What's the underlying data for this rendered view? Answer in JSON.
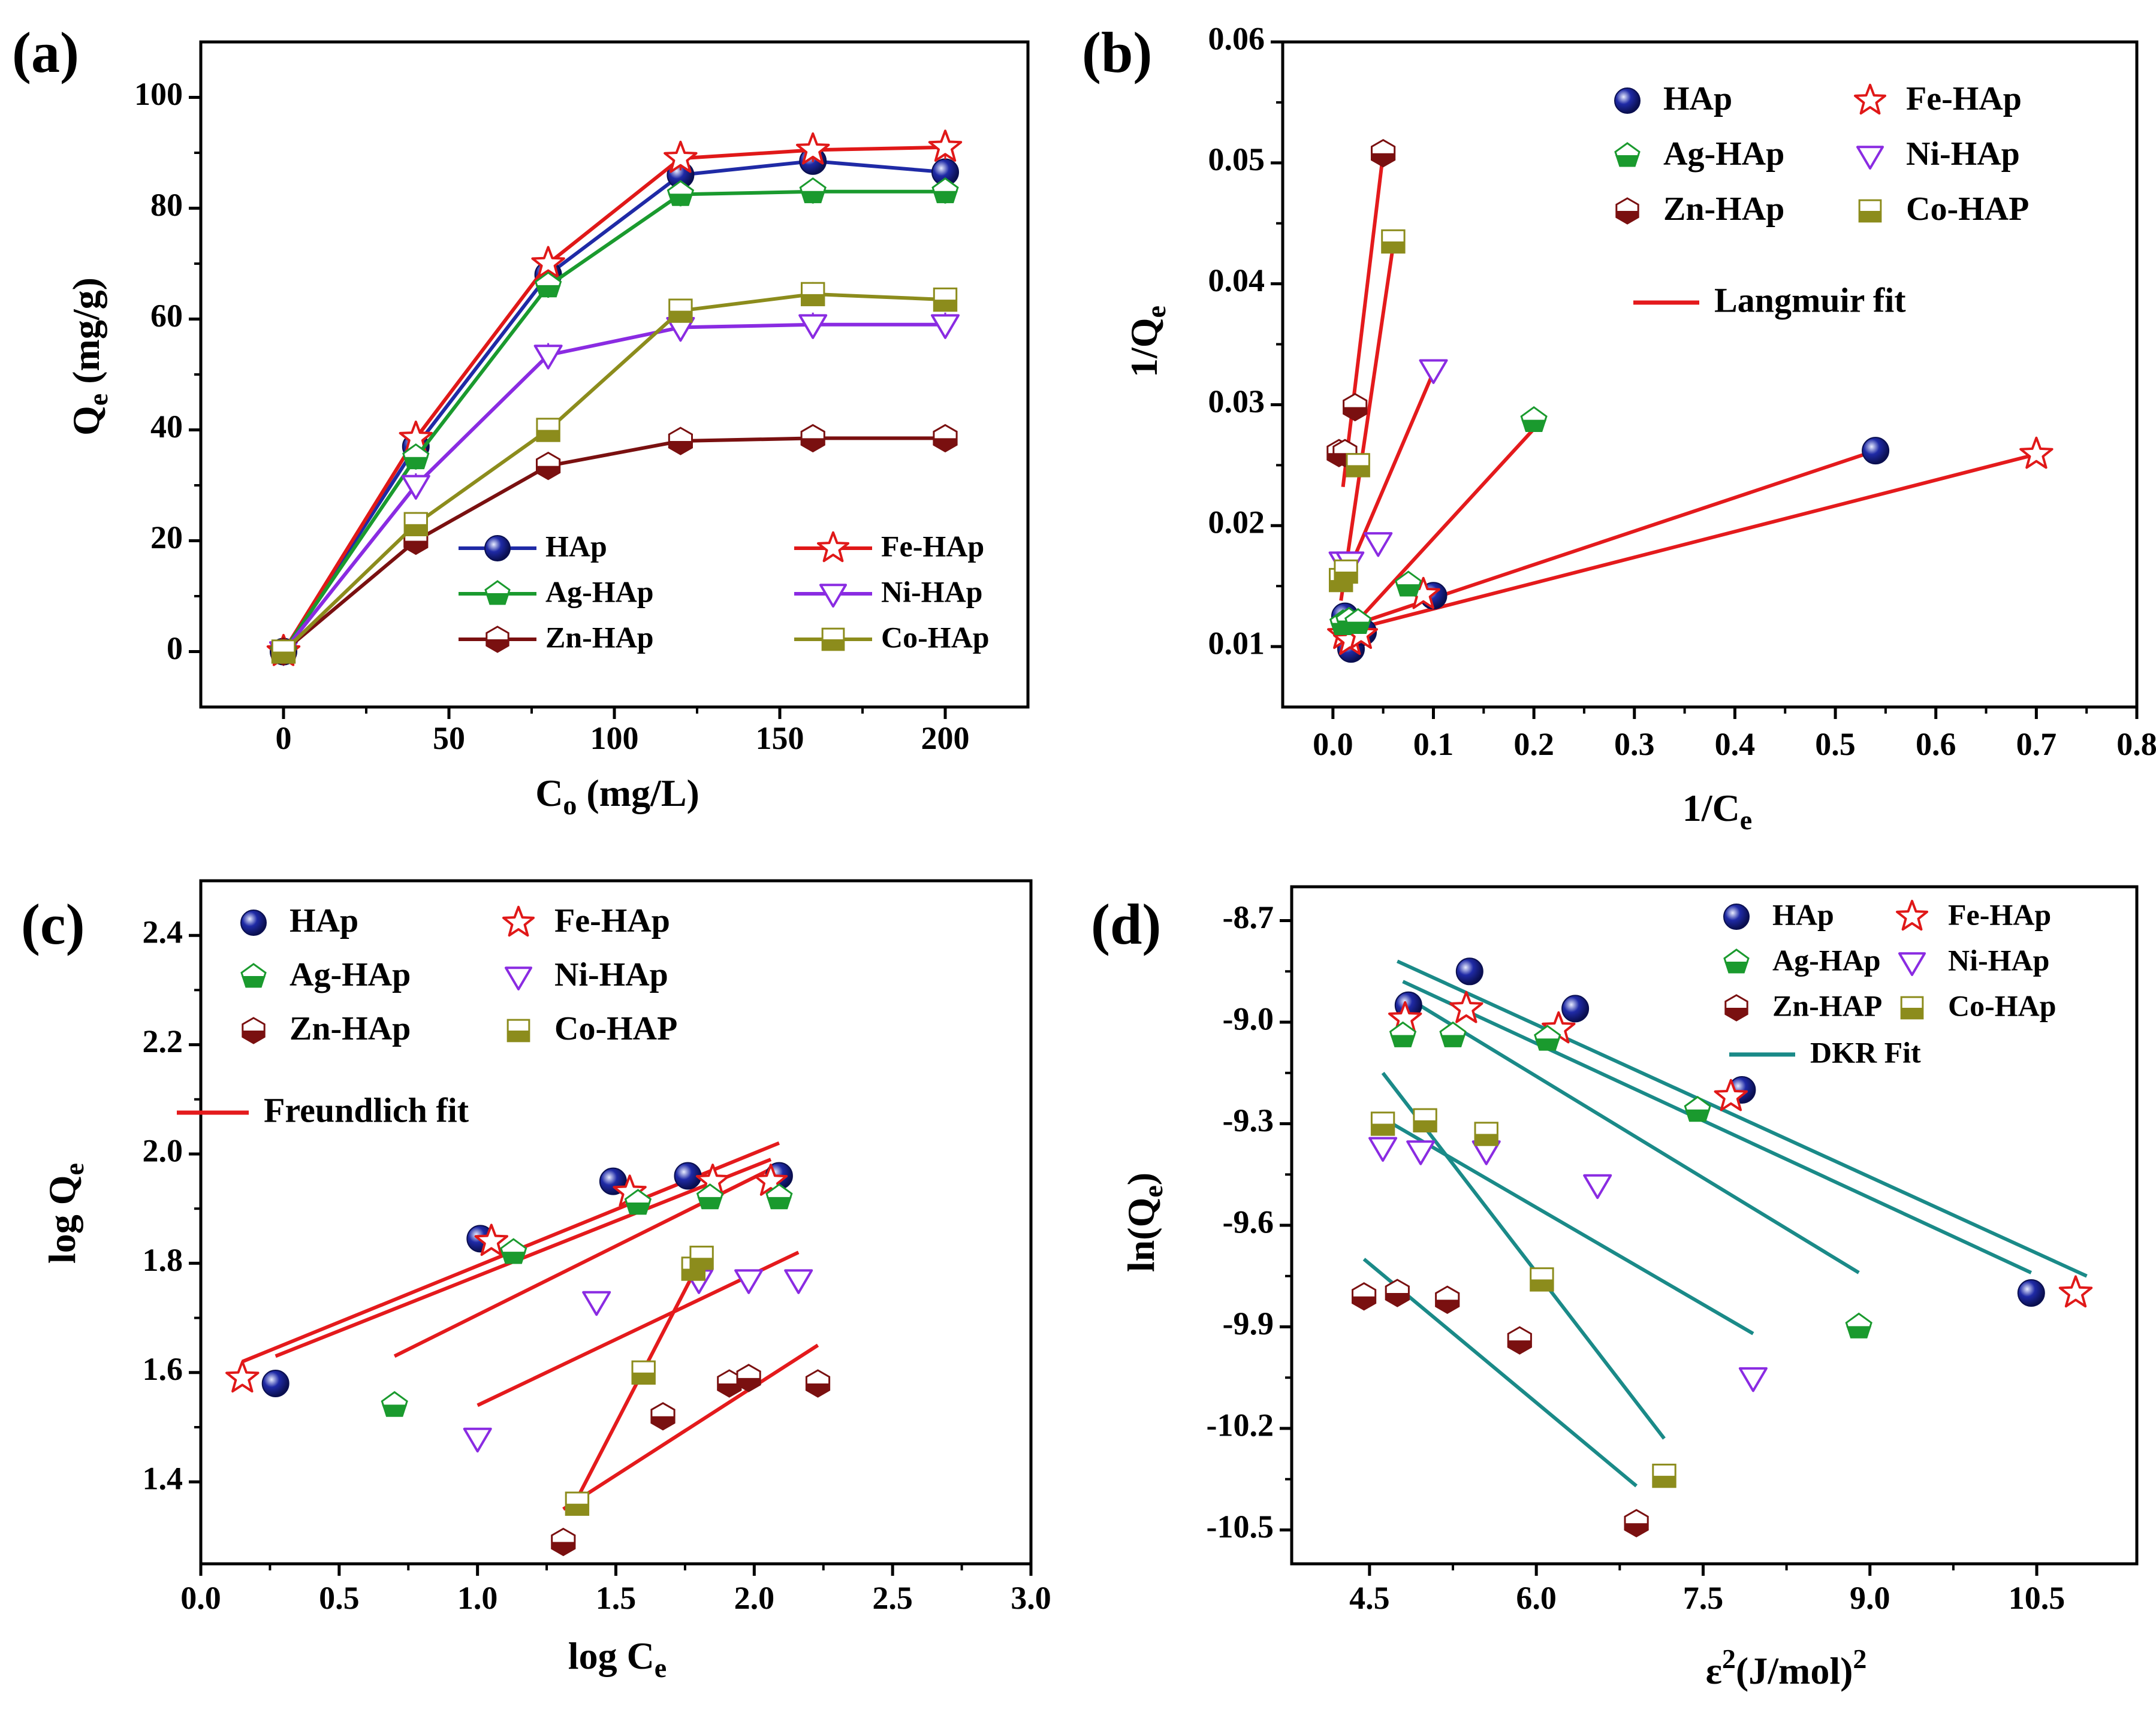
{
  "colors": {
    "HAp": "#1f2aa6",
    "Ag": "#1a9a2e",
    "Zn": "#7a1010",
    "Fe": "#e01818",
    "Ni": "#8a2be2",
    "Co": "#8c8c1c",
    "fit_red": "#e41a1c",
    "fit_teal": "#1a8a88"
  },
  "chart_data": [
    {
      "panel": "(a)",
      "type": "line",
      "xlabel_main": "C",
      "xlabel_sub": "o",
      "xlabel_unit": " (mg/L)",
      "ylabel_main": "Q",
      "ylabel_sub": "e",
      "ylabel_unit": " (mg/g)",
      "xlim": [
        -25,
        225
      ],
      "ylim": [
        -10,
        110
      ],
      "xticks": [
        0,
        50,
        100,
        150,
        200
      ],
      "xtick_labels": [
        "0",
        "50",
        "100",
        "150",
        "200"
      ],
      "yticks": [
        0,
        20,
        40,
        60,
        80,
        100
      ],
      "ytick_labels": [
        "0",
        "20",
        "40",
        "60",
        "80",
        "100"
      ],
      "x": [
        0,
        40,
        80,
        120,
        160,
        200
      ],
      "series": [
        {
          "name": "HAp",
          "key": "HAp",
          "marker": "circle",
          "values": [
            0,
            37,
            68,
            86,
            88.5,
            86.5
          ]
        },
        {
          "name": "Fe-HAp",
          "key": "Fe",
          "marker": "star",
          "values": [
            0,
            38.5,
            70,
            89,
            90.5,
            91
          ]
        },
        {
          "name": "Ag-HAp",
          "key": "Ag",
          "marker": "pentagon",
          "values": [
            0,
            35,
            66,
            82.5,
            83,
            83
          ]
        },
        {
          "name": "Ni-HAp",
          "key": "Ni",
          "marker": "triangle",
          "values": [
            0,
            30,
            53.5,
            58.5,
            59,
            59
          ]
        },
        {
          "name": "Zn-HAp",
          "key": "Zn",
          "marker": "hexagon",
          "values": [
            0,
            20,
            33.5,
            38,
            38.5,
            38.5
          ]
        },
        {
          "name": "Co-HAp",
          "key": "Co",
          "marker": "square",
          "values": [
            0,
            23,
            40,
            61.5,
            64.5,
            63.5
          ]
        }
      ],
      "legend": [
        "HAp",
        "Fe-HAp",
        "Ag-HAp",
        "Ni-HAp",
        "Zn-HAp",
        "Co-HAp"
      ]
    },
    {
      "panel": "(b)",
      "type": "scatter",
      "xlabel_main": "1/C",
      "xlabel_sub": "e",
      "xlabel_unit": "",
      "ylabel_main": "1/Q",
      "ylabel_sub": "e",
      "ylabel_unit": "",
      "xlim": [
        -0.05,
        0.8
      ],
      "ylim": [
        0.005,
        0.06
      ],
      "xticks": [
        0,
        0.1,
        0.2,
        0.3,
        0.4,
        0.5,
        0.6,
        0.7,
        0.8
      ],
      "xtick_labels": [
        "0.0",
        "0.1",
        "0.2",
        "0.3",
        "0.4",
        "0.5",
        "0.6",
        "0.7",
        "0.8"
      ],
      "yticks": [
        0.01,
        0.02,
        0.03,
        0.04,
        0.05,
        0.06
      ],
      "ytick_labels": [
        "0.01",
        "0.02",
        "0.03",
        "0.04",
        "0.05",
        "0.06"
      ],
      "series": [
        {
          "name": "HAp",
          "key": "HAp",
          "marker": "circle",
          "x": [
            0.012,
            0.018,
            0.03,
            0.1,
            0.54
          ],
          "y": [
            0.0125,
            0.0098,
            0.0112,
            0.0142,
            0.0262
          ]
        },
        {
          "name": "Fe-HAp",
          "key": "Fe",
          "marker": "star",
          "x": [
            0.011,
            0.017,
            0.028,
            0.09,
            0.7
          ],
          "y": [
            0.011,
            0.0105,
            0.011,
            0.0143,
            0.0259
          ]
        },
        {
          "name": "Ag-HAp",
          "key": "Ag",
          "marker": "pentagon",
          "x": [
            0.01,
            0.016,
            0.025,
            0.075,
            0.2
          ],
          "y": [
            0.0119,
            0.0121,
            0.012,
            0.0151,
            0.0287
          ]
        },
        {
          "name": "Ni-HAp",
          "key": "Ni",
          "marker": "triangle",
          "x": [
            0.01,
            0.017,
            0.045,
            0.1
          ],
          "y": [
            0.017,
            0.017,
            0.0186,
            0.0329
          ]
        },
        {
          "name": "Zn-HAp",
          "key": "Zn",
          "marker": "hexagon",
          "x": [
            0.006,
            0.012,
            0.022,
            0.05
          ],
          "y": [
            0.026,
            0.026,
            0.0298,
            0.0508
          ]
        },
        {
          "name": "Co-HAP",
          "key": "Co",
          "marker": "square",
          "x": [
            0.008,
            0.013,
            0.025,
            0.06
          ],
          "y": [
            0.0155,
            0.0162,
            0.025,
            0.0435
          ]
        }
      ],
      "fits": [
        {
          "x1": 0.01,
          "y1": 0.0115,
          "x2": 0.54,
          "y2": 0.0262
        },
        {
          "x1": 0.01,
          "y1": 0.0112,
          "x2": 0.7,
          "y2": 0.0259
        },
        {
          "x1": 0.01,
          "y1": 0.0108,
          "x2": 0.2,
          "y2": 0.028
        },
        {
          "x1": 0.008,
          "y1": 0.0148,
          "x2": 0.1,
          "y2": 0.0327
        },
        {
          "x1": 0.01,
          "y1": 0.0232,
          "x2": 0.05,
          "y2": 0.0508
        },
        {
          "x1": 0.008,
          "y1": 0.0138,
          "x2": 0.06,
          "y2": 0.0432
        }
      ],
      "legend": [
        "HAp",
        "Fe-HAp",
        "Ag-HAp",
        "Ni-HAp",
        "Zn-HAp",
        "Co-HAP"
      ],
      "fit_label": "Langmuir fit"
    },
    {
      "panel": "(c)",
      "type": "scatter",
      "xlabel_main": "log C",
      "xlabel_sub": "e",
      "xlabel_unit": "",
      "ylabel_main": "log Q",
      "ylabel_sub": "e",
      "ylabel_unit": "",
      "xlim": [
        0,
        3
      ],
      "ylim": [
        1.25,
        2.5
      ],
      "xticks": [
        0,
        0.5,
        1,
        1.5,
        2,
        2.5,
        3
      ],
      "xtick_labels": [
        "0.0",
        "0.5",
        "1.0",
        "1.5",
        "2.0",
        "2.5",
        "3.0"
      ],
      "yticks": [
        1.4,
        1.6,
        1.8,
        2.0,
        2.2,
        2.4
      ],
      "ytick_labels": [
        "1.4",
        "1.6",
        "1.8",
        "2.0",
        "2.2",
        "2.4"
      ],
      "series": [
        {
          "name": "HAp",
          "key": "HAp",
          "marker": "circle",
          "x": [
            0.27,
            1.01,
            1.49,
            1.76,
            2.09
          ],
          "y": [
            1.58,
            1.845,
            1.95,
            1.96,
            1.96
          ]
        },
        {
          "name": "Fe-HAp",
          "key": "Fe",
          "marker": "star",
          "x": [
            0.15,
            1.05,
            1.55,
            1.85,
            2.06
          ],
          "y": [
            1.59,
            1.84,
            1.93,
            1.95,
            1.95
          ]
        },
        {
          "name": "Ag-HAp",
          "key": "Ag",
          "marker": "pentagon",
          "x": [
            0.7,
            1.13,
            1.58,
            1.84,
            2.09
          ],
          "y": [
            1.54,
            1.82,
            1.91,
            1.92,
            1.92
          ]
        },
        {
          "name": "Ni-HAp",
          "key": "Ni",
          "marker": "triangle",
          "x": [
            1.0,
            1.43,
            1.8,
            1.98,
            2.16
          ],
          "y": [
            1.48,
            1.73,
            1.77,
            1.77,
            1.77
          ]
        },
        {
          "name": "Zn-HAp",
          "key": "Zn",
          "marker": "hexagon",
          "x": [
            1.31,
            1.67,
            1.91,
            1.98,
            2.23
          ],
          "y": [
            1.29,
            1.52,
            1.58,
            1.59,
            1.58
          ]
        },
        {
          "name": "Co-HAP",
          "key": "Co",
          "marker": "square",
          "x": [
            1.36,
            1.6,
            1.78,
            1.81
          ],
          "y": [
            1.36,
            1.6,
            1.79,
            1.81
          ]
        }
      ],
      "fits": [
        {
          "x1": 0.15,
          "y1": 1.62,
          "x2": 2.09,
          "y2": 2.02
        },
        {
          "x1": 0.27,
          "y1": 1.63,
          "x2": 2.06,
          "y2": 1.99
        },
        {
          "x1": 0.7,
          "y1": 1.63,
          "x2": 2.09,
          "y2": 1.98
        },
        {
          "x1": 1.0,
          "y1": 1.54,
          "x2": 2.16,
          "y2": 1.82
        },
        {
          "x1": 1.31,
          "y1": 1.35,
          "x2": 2.23,
          "y2": 1.65
        },
        {
          "x1": 1.33,
          "y1": 1.34,
          "x2": 1.81,
          "y2": 1.81
        }
      ],
      "legend": [
        "HAp",
        "Fe-HAp",
        "Ag-HAp",
        "Ni-HAp",
        "Zn-HAp",
        "Co-HAP"
      ],
      "fit_label": "Freundlich fit"
    },
    {
      "panel": "(d)",
      "type": "scatter",
      "xlabel_main": "ε",
      "xlabel_sup1": "2",
      "xlabel_mid": "(J/mol)",
      "xlabel_sup2": "2",
      "ylabel_main": "ln(Q",
      "ylabel_sub": "e",
      "ylabel_unit": ")",
      "xlim": [
        3.8,
        11.4
      ],
      "ylim": [
        -10.6,
        -8.6
      ],
      "xticks": [
        4.5,
        6.0,
        7.5,
        9.0,
        10.5
      ],
      "xtick_labels": [
        "4.5",
        "6.0",
        "7.5",
        "9.0",
        "10.5"
      ],
      "yticks": [
        -8.7,
        -9.0,
        -9.3,
        -9.6,
        -9.9,
        -10.2,
        -10.5
      ],
      "ytick_labels": [
        "-8.7",
        "-9.0",
        "-9.3",
        "-9.6",
        "-9.9",
        "-10.2",
        "-10.5"
      ],
      "series": [
        {
          "name": "HAp",
          "key": "HAp",
          "marker": "circle",
          "x": [
            4.85,
            5.4,
            6.35,
            7.85,
            10.45
          ],
          "y": [
            -8.95,
            -8.85,
            -8.96,
            -9.2,
            -9.8
          ]
        },
        {
          "name": "Fe-HAp",
          "key": "Fe",
          "marker": "star",
          "x": [
            4.82,
            5.37,
            6.2,
            7.75,
            10.85
          ],
          "y": [
            -8.99,
            -8.96,
            -9.02,
            -9.22,
            -9.8
          ]
        },
        {
          "name": "Ag-HAp",
          "key": "Ag",
          "marker": "pentagon",
          "x": [
            4.8,
            5.25,
            6.1,
            7.45,
            8.9
          ],
          "y": [
            -9.04,
            -9.04,
            -9.05,
            -9.26,
            -9.9
          ]
        },
        {
          "name": "Ni-HAp",
          "key": "Ni",
          "marker": "triangle",
          "x": [
            4.62,
            4.96,
            5.55,
            6.55,
            7.95
          ],
          "y": [
            -9.37,
            -9.38,
            -9.38,
            -9.48,
            -10.05
          ]
        },
        {
          "name": "Zn-HAP",
          "key": "Zn",
          "marker": "hexagon",
          "x": [
            4.45,
            4.75,
            5.2,
            5.85,
            6.9
          ],
          "y": [
            -9.81,
            -9.8,
            -9.82,
            -9.94,
            -10.48
          ]
        },
        {
          "name": "Co-HAp",
          "key": "Co",
          "marker": "square",
          "x": [
            4.62,
            5.0,
            5.55,
            6.05,
            7.15
          ],
          "y": [
            -9.3,
            -9.29,
            -9.33,
            -9.76,
            -10.34
          ]
        }
      ],
      "fits": [
        {
          "x1": 4.75,
          "y1": -8.82,
          "x2": 10.95,
          "y2": -9.75
        },
        {
          "x1": 4.8,
          "y1": -8.88,
          "x2": 10.45,
          "y2": -9.74
        },
        {
          "x1": 4.8,
          "y1": -8.92,
          "x2": 8.9,
          "y2": -9.74
        },
        {
          "x1": 4.6,
          "y1": -9.28,
          "x2": 7.95,
          "y2": -9.92
        },
        {
          "x1": 4.45,
          "y1": -9.7,
          "x2": 6.9,
          "y2": -10.37
        },
        {
          "x1": 4.62,
          "y1": -9.15,
          "x2": 7.15,
          "y2": -10.23
        }
      ],
      "legend": [
        "HAp",
        "Fe-HAp",
        "Ag-HAp",
        "Ni-HAp",
        "Zn-HAP",
        "Co-HAp"
      ],
      "fit_label": "DKR Fit"
    }
  ]
}
